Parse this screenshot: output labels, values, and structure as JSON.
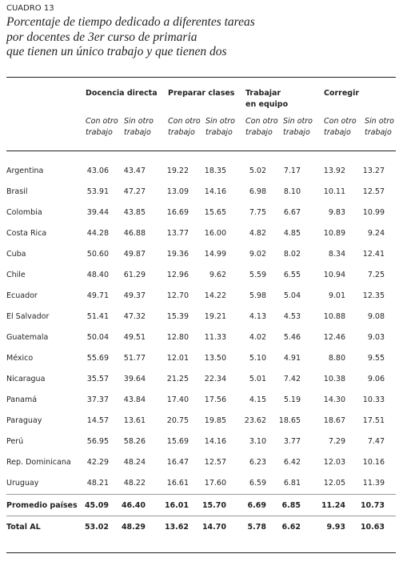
{
  "header": {
    "label": "CUADRO 13",
    "title_lines": [
      "Porcentaje de tiempo dedicado a diferentes tareas",
      "por docentes de 3er curso de primaria",
      "que tienen un único trabajo y que tienen dos"
    ]
  },
  "table": {
    "groups": [
      {
        "label": [
          "Docencia directa"
        ],
        "sub": [
          [
            "Con otro",
            "trabajo"
          ],
          [
            "Sin otro",
            "trabajo"
          ]
        ]
      },
      {
        "label": [
          "Preparar clases"
        ],
        "sub": [
          [
            "Con otro",
            "trabajo"
          ],
          [
            "Sin otro",
            "trabajo"
          ]
        ]
      },
      {
        "label": [
          "Trabajar",
          "en equipo"
        ],
        "sub": [
          [
            "Con otro",
            "trabajo"
          ],
          [
            "Sin otro",
            "trabajo"
          ]
        ]
      },
      {
        "label": [
          "Corregir"
        ],
        "sub": [
          [
            "Con otro",
            "trabajo"
          ],
          [
            "Sin otro",
            "trabajo"
          ]
        ]
      }
    ],
    "rows": [
      [
        "Argentina",
        "43.06",
        "43.47",
        "19.22",
        "18.35",
        "5.02",
        "7.17",
        "13.92",
        "13.27"
      ],
      [
        "Brasil",
        "53.91",
        "47.27",
        "13.09",
        "14.16",
        "6.98",
        "8.10",
        "10.11",
        "12.57"
      ],
      [
        "Colombia",
        "39.44",
        "43.85",
        "16.69",
        "15.65",
        "7.75",
        "6.67",
        "9.83",
        "10.99"
      ],
      [
        "Costa Rica",
        "44.28",
        "46.88",
        "13.77",
        "16.00",
        "4.82",
        "4.85",
        "10.89",
        "9.24"
      ],
      [
        "Cuba",
        "50.60",
        "49.87",
        "19.36",
        "14.99",
        "9.02",
        "8.02",
        "8.34",
        "12.41"
      ],
      [
        "Chile",
        "48.40",
        "61.29",
        "12.96",
        "9.62",
        "5.59",
        "6.55",
        "10.94",
        "7.25"
      ],
      [
        "Ecuador",
        "49.71",
        "49.37",
        "12.70",
        "14.22",
        "5.98",
        "5.04",
        "9.01",
        "12.35"
      ],
      [
        "El Salvador",
        "51.41",
        "47.32",
        "15.39",
        "19.21",
        "4.13",
        "4.53",
        "10.88",
        "9.08"
      ],
      [
        "Guatemala",
        "50.04",
        "49.51",
        "12.80",
        "11.33",
        "4.02",
        "5.46",
        "12.46",
        "9.03"
      ],
      [
        "México",
        "55.69",
        "51.77",
        "12.01",
        "13.50",
        "5.10",
        "4.91",
        "8.80",
        "9.55"
      ],
      [
        "Nicaragua",
        "35.57",
        "39.64",
        "21.25",
        "22.34",
        "5.01",
        "7.42",
        "10.38",
        "9.06"
      ],
      [
        "Panamá",
        "37.37",
        "43.84",
        "17.40",
        "17.56",
        "4.15",
        "5.19",
        "14.30",
        "10.33"
      ],
      [
        "Paraguay",
        "14.57",
        "13.61",
        "20.75",
        "19.85",
        "23.62",
        "18.65",
        "18.67",
        "17.51"
      ],
      [
        "Perú",
        "56.95",
        "58.26",
        "15.69",
        "14.16",
        "3.10",
        "3.77",
        "7.29",
        "7.47"
      ],
      [
        "Rep. Dominicana",
        "42.29",
        "48.24",
        "16.47",
        "12.57",
        "6.23",
        "6.42",
        "12.03",
        "10.16"
      ],
      [
        "Uruguay",
        "48.21",
        "48.22",
        "16.61",
        "17.60",
        "6.59",
        "6.81",
        "12.05",
        "11.39"
      ]
    ],
    "summary_rows": [
      [
        "Promedio países",
        "45.09",
        "46.40",
        "16.01",
        "15.70",
        "6.69",
        "6.85",
        "11.24",
        "10.73"
      ],
      [
        "Total AL",
        "53.02",
        "48.29",
        "13.62",
        "14.70",
        "5.78",
        "6.62",
        "9.93",
        "10.63"
      ]
    ]
  }
}
